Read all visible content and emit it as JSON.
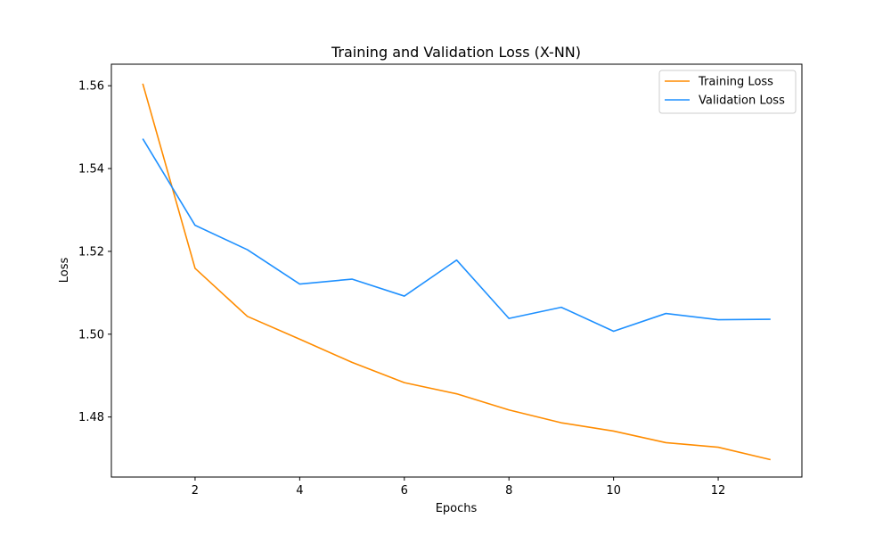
{
  "chart_data": {
    "type": "line",
    "title": "Training and Validation Loss (X-NN)",
    "xlabel": "Epochs",
    "ylabel": "Loss",
    "x": [
      1,
      2,
      3,
      4,
      5,
      6,
      7,
      8,
      9,
      10,
      11,
      12,
      13
    ],
    "xlim": [
      0.4,
      13.6
    ],
    "ylim": [
      1.4655,
      1.5652
    ],
    "xticks": [
      2,
      4,
      6,
      8,
      10,
      12
    ],
    "xtick_labels": [
      "2",
      "4",
      "6",
      "8",
      "10",
      "12"
    ],
    "yticks": [
      1.48,
      1.5,
      1.52,
      1.54,
      1.56
    ],
    "ytick_labels": [
      "1.48",
      "1.50",
      "1.52",
      "1.54",
      "1.56"
    ],
    "grid": false,
    "legend_position": "top-right",
    "series": [
      {
        "name": "Training Loss",
        "color": "#ff8c00",
        "values": [
          1.5605,
          1.5159,
          1.5043,
          1.4988,
          1.4932,
          1.4883,
          1.4856,
          1.4817,
          1.4786,
          1.4766,
          1.4738,
          1.4727,
          1.4697
        ]
      },
      {
        "name": "Validation Loss",
        "color": "#1e90ff",
        "values": [
          1.5472,
          1.5263,
          1.5204,
          1.5121,
          1.5133,
          1.5092,
          1.5179,
          1.5038,
          1.5065,
          1.5007,
          1.505,
          1.5035,
          1.5036
        ]
      }
    ]
  }
}
